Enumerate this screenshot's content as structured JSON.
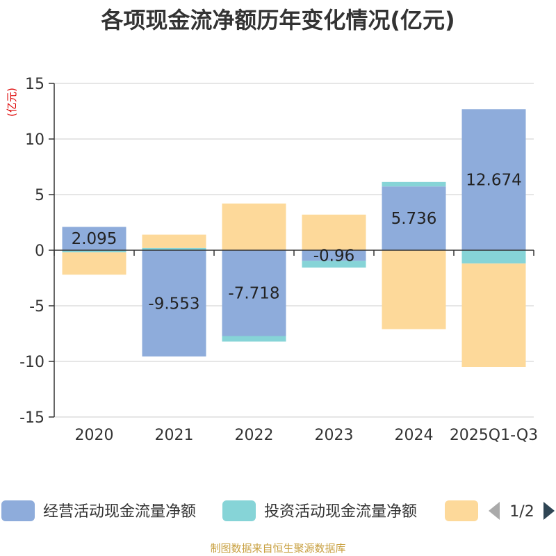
{
  "colors": {
    "operating": "#8eacdb",
    "investing": "#86d4d7",
    "financing": "#fdd99a",
    "unit": "#dd0000",
    "source": "#c8a040"
  },
  "chart_data": {
    "type": "bar",
    "stacked": true,
    "title": "各项现金流净额历年变化情况(亿元)",
    "ylabel": "(亿元)",
    "ylim": [
      -15,
      15
    ],
    "yticks": [
      15,
      10,
      5,
      0,
      -5,
      -10,
      -15
    ],
    "categories": [
      "2020",
      "2021",
      "2022",
      "2023",
      "2024",
      "2025Q1-Q3"
    ],
    "series": [
      {
        "name": "经营活动现金流量净额",
        "values": [
          2.095,
          -9.553,
          -7.718,
          -0.96,
          5.736,
          12.674
        ],
        "labels": [
          "2.095",
          "-9.553",
          "-7.718",
          "-0.96",
          "5.736",
          "12.674"
        ]
      },
      {
        "name": "投资活动现金流量净额",
        "values": [
          -0.2,
          0.2,
          -0.5,
          -0.6,
          0.4,
          -1.2
        ]
      },
      {
        "name": "",
        "values": [
          -2.0,
          1.2,
          4.2,
          3.2,
          -7.1,
          -9.3
        ]
      }
    ],
    "legend_position": "bottom",
    "legend_page": "1/2"
  },
  "source": "制图数据来自恒生聚源数据库"
}
